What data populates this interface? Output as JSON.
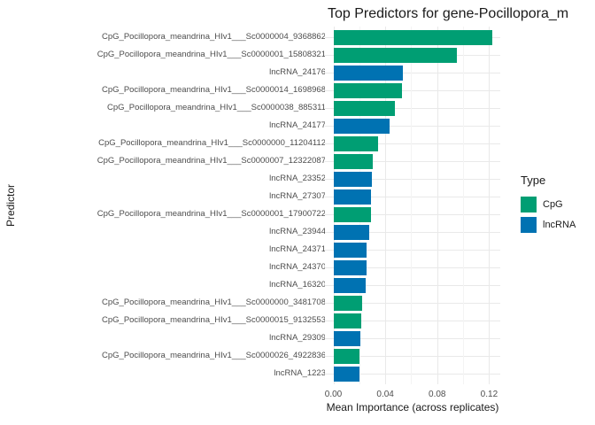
{
  "title": "Top Predictors for gene-Pocillopora_m",
  "axes": {
    "x_label": "Mean Importance (across replicates)",
    "y_label": "Predictor",
    "x_ticks": [
      "0.00",
      "0.04",
      "0.08",
      "0.12"
    ]
  },
  "legend": {
    "title": "Type",
    "entries": [
      {
        "label": "CpG",
        "color": "#009E73"
      },
      {
        "label": "lncRNA",
        "color": "#0072B2"
      }
    ]
  },
  "colors": {
    "background": "#FFFFFF",
    "grid_major": "#E9E9E9",
    "grid_minor": "#F4F4F4",
    "tick_text": "#4D4D4D",
    "title_text": "#1A1A1A"
  },
  "chart_data": {
    "type": "bar",
    "orientation": "horizontal",
    "title": "Top Predictors for gene-Pocillopora_m",
    "xlabel": "Mean Importance (across replicates)",
    "ylabel": "Predictor",
    "xlim": [
      0,
      0.128
    ],
    "x_tick_values": [
      0,
      0.04,
      0.08,
      0.12
    ],
    "x_minor_tick_values": [
      0.02,
      0.06,
      0.1
    ],
    "grid": true,
    "legend_position": "right",
    "categories": [
      "CpG_Pocillopora_meandrina_HIv1___Sc0000004_9368862",
      "CpG_Pocillopora_meandrina_HIv1___Sc0000001_15808321",
      "lncRNA_24176",
      "CpG_Pocillopora_meandrina_HIv1___Sc0000014_1698968",
      "CpG_Pocillopora_meandrina_HIv1___Sc0000038_885311",
      "lncRNA_24177",
      "CpG_Pocillopora_meandrina_HIv1___Sc0000000_11204112",
      "CpG_Pocillopora_meandrina_HIv1___Sc0000007_12322087",
      "lncRNA_23352",
      "lncRNA_27307",
      "CpG_Pocillopora_meandrina_HIv1___Sc0000001_17900722",
      "lncRNA_23944",
      "lncRNA_24371",
      "lncRNA_24370",
      "lncRNA_16320",
      "CpG_Pocillopora_meandrina_HIv1___Sc0000000_3481708",
      "CpG_Pocillopora_meandrina_HIv1___Sc0000015_9132553",
      "lncRNA_29309",
      "CpG_Pocillopora_meandrina_HIv1___Sc0000026_4922836",
      "lncRNA_1223"
    ],
    "types": [
      "CpG",
      "CpG",
      "lncRNA",
      "CpG",
      "CpG",
      "lncRNA",
      "CpG",
      "CpG",
      "lncRNA",
      "lncRNA",
      "CpG",
      "lncRNA",
      "lncRNA",
      "lncRNA",
      "lncRNA",
      "CpG",
      "CpG",
      "lncRNA",
      "CpG",
      "lncRNA"
    ],
    "values": [
      0.122,
      0.095,
      0.0535,
      0.0525,
      0.047,
      0.043,
      0.034,
      0.03,
      0.029,
      0.0285,
      0.0285,
      0.027,
      0.025,
      0.025,
      0.0245,
      0.022,
      0.021,
      0.0205,
      0.02,
      0.02
    ],
    "type_colors": {
      "CpG": "#009E73",
      "lncRNA": "#0072B2"
    }
  }
}
